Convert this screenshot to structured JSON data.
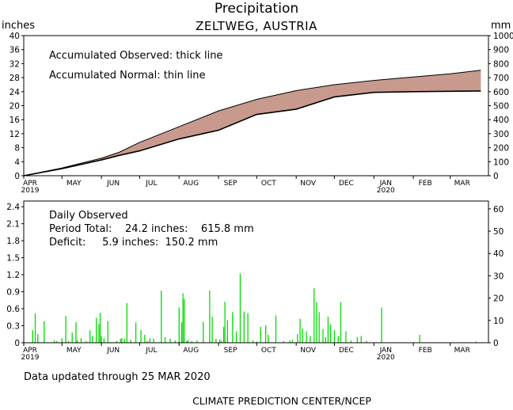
{
  "header": {
    "title": "Precipitation",
    "location": "ZELTWEG, AUSTRIA",
    "left_unit": "inches",
    "right_unit": "mm"
  },
  "colors": {
    "deficit_fill": "#c89a8e",
    "daily_bar": "#00dd00",
    "line": "#000000",
    "background": "#ffffff"
  },
  "month_labels": [
    "APR",
    "MAY",
    "JUN",
    "JUL",
    "AUG",
    "SEP",
    "OCT",
    "NOV",
    "DEC",
    "JAN",
    "FEB",
    "MAR"
  ],
  "year_labels": {
    "APR": "2019",
    "JAN": "2020"
  },
  "top_legend": {
    "observed": "Accumulated Observed: thick line",
    "normal": "Accumulated Normal: thin line"
  },
  "bottom_legend": {
    "title": "Daily Observed",
    "period_total": "Period Total:    24.2 inches:    615.8 mm",
    "deficit": "Deficit:     5.9 inches:  150.2 mm"
  },
  "footer": {
    "updated": "Data updated through 25 MAR 2020",
    "credit": "CLIMATE PREDICTION CENTER/NCEP"
  },
  "chart_data": [
    {
      "type": "area",
      "xlabel": "",
      "ylabel": "inches",
      "y2label": "mm",
      "ylim": [
        0,
        40
      ],
      "y2lim": [
        0,
        1000
      ],
      "yticks": [
        0,
        4,
        8,
        12,
        16,
        20,
        24,
        28,
        32,
        36,
        40
      ],
      "y2ticks": [
        0,
        100,
        200,
        300,
        400,
        500,
        600,
        700,
        800,
        900,
        1000
      ],
      "x": [
        "2019-04-01",
        "2019-05-01",
        "2019-06-01",
        "2019-06-15",
        "2019-07-01",
        "2019-08-01",
        "2019-09-01",
        "2019-10-01",
        "2019-11-01",
        "2019-12-01",
        "2020-01-01",
        "2020-02-01",
        "2020-03-01",
        "2020-03-25"
      ],
      "series": [
        {
          "values": [
            0,
            2.2,
            5.0,
            6.7,
            9.5,
            14.0,
            18.5,
            21.8,
            24.3,
            26.0,
            27.2,
            28.2,
            29.1,
            30.1
          ]
        },
        {
          "values": [
            0,
            2.0,
            4.5,
            5.8,
            7.1,
            10.5,
            13.0,
            17.5,
            19.0,
            22.5,
            23.8,
            24.0,
            24.1,
            24.2
          ]
        }
      ]
    },
    {
      "type": "bar",
      "title": "Daily Observed",
      "ylabel": "inches",
      "y2label": "mm",
      "ylim": [
        0,
        2.5
      ],
      "y2lim": [
        0,
        63.5
      ],
      "yticks": [
        0,
        0.3,
        0.6,
        0.9,
        1.2,
        1.5,
        1.8,
        2.1,
        2.4
      ],
      "yticklabels": [
        "0",
        "0.3",
        "0.6",
        "0.9",
        "1.2",
        "1.5",
        "1.8",
        "2.1",
        "2.4"
      ],
      "y2ticks": [
        0,
        10,
        20,
        30,
        40,
        50,
        60
      ],
      "x": [
        "2019-04-08",
        "2019-04-10",
        "2019-04-12",
        "2019-04-17",
        "2019-04-25",
        "2019-04-27",
        "2019-05-01",
        "2019-05-04",
        "2019-05-06",
        "2019-05-09",
        "2019-05-12",
        "2019-05-13",
        "2019-05-16",
        "2019-05-20",
        "2019-05-23",
        "2019-05-25",
        "2019-05-28",
        "2019-05-30",
        "2019-05-31",
        "2019-06-01",
        "2019-06-03",
        "2019-06-06",
        "2019-06-13",
        "2019-06-16",
        "2019-06-17",
        "2019-06-19",
        "2019-06-21",
        "2019-06-24",
        "2019-06-28",
        "2019-07-02",
        "2019-07-05",
        "2019-07-07",
        "2019-07-09",
        "2019-07-12",
        "2019-07-18",
        "2019-07-21",
        "2019-07-25",
        "2019-07-29",
        "2019-08-01",
        "2019-08-03",
        "2019-08-04",
        "2019-08-05",
        "2019-08-07",
        "2019-08-08",
        "2019-08-11",
        "2019-08-15",
        "2019-08-20",
        "2019-08-25",
        "2019-08-27",
        "2019-08-30",
        "2019-09-02",
        "2019-09-03",
        "2019-09-05",
        "2019-09-06",
        "2019-09-08",
        "2019-09-12",
        "2019-09-15",
        "2019-09-18",
        "2019-09-21",
        "2019-09-24",
        "2019-09-28",
        "2019-10-01",
        "2019-10-04",
        "2019-10-08",
        "2019-10-10",
        "2019-10-16",
        "2019-10-22",
        "2019-10-27",
        "2019-10-29",
        "2019-11-02",
        "2019-11-04",
        "2019-11-06",
        "2019-11-09",
        "2019-11-12",
        "2019-11-15",
        "2019-11-17",
        "2019-11-19",
        "2019-11-22",
        "2019-11-24",
        "2019-11-26",
        "2019-11-28",
        "2019-12-01",
        "2019-12-04",
        "2019-12-06",
        "2019-12-10",
        "2019-12-14",
        "2019-12-19",
        "2019-12-22",
        "2019-12-26",
        "2020-01-07",
        "2020-02-06",
        "2020-03-21"
      ],
      "values": [
        0.22,
        0.52,
        0.15,
        0.38,
        0.04,
        0.03,
        0.08,
        0.47,
        0.03,
        0.18,
        0.36,
        0.04,
        0.08,
        0.03,
        0.22,
        0.12,
        0.44,
        0.33,
        0.53,
        0.12,
        0.08,
        0.38,
        0.03,
        0.07,
        0.08,
        0.07,
        0.7,
        0.05,
        0.36,
        0.22,
        0.14,
        0.03,
        0.08,
        0.07,
        0.92,
        0.1,
        0.07,
        0.04,
        0.62,
        0.36,
        0.87,
        0.77,
        0.03,
        0.05,
        0.03,
        0.04,
        0.37,
        0.92,
        0.46,
        0.07,
        0.06,
        0.03,
        0.28,
        0.72,
        0.4,
        0.54,
        0.2,
        1.22,
        0.55,
        0.52,
        0.04,
        0.02,
        0.28,
        0.31,
        0.14,
        0.48,
        0.03,
        0.04,
        0.05,
        0.15,
        0.42,
        0.25,
        0.2,
        0.12,
        0.96,
        0.72,
        0.54,
        0.24,
        0.1,
        0.46,
        0.32,
        0.22,
        0.12,
        0.72,
        0.2,
        0.04,
        0.1,
        0.12,
        0.03,
        0.62,
        0.14,
        0.02
      ]
    }
  ]
}
